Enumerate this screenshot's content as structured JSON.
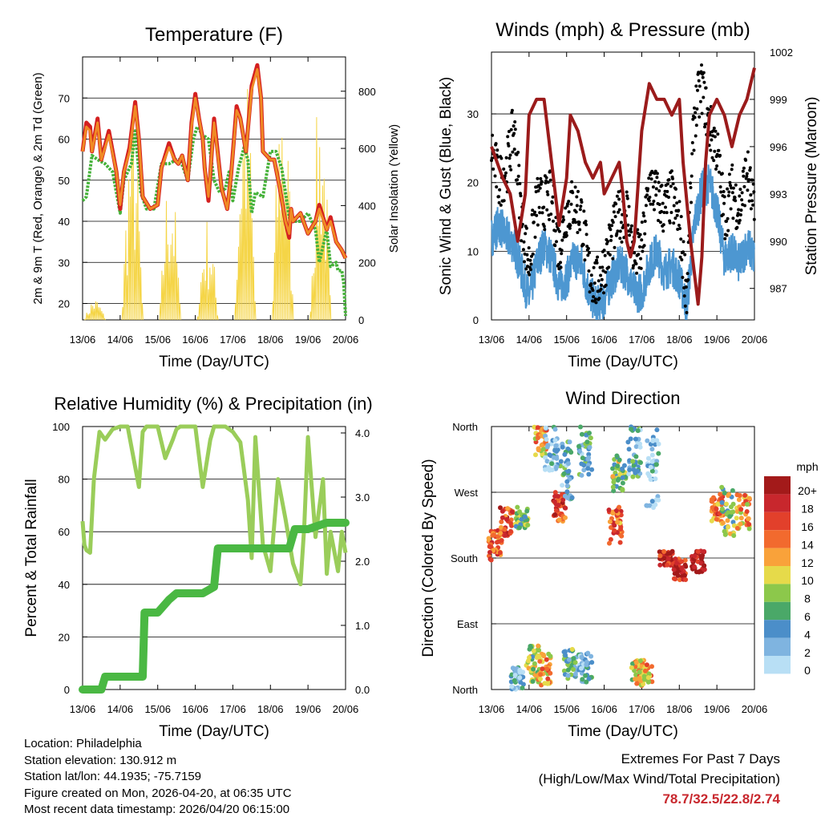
{
  "chart_data": [
    {
      "type": "line",
      "title": "Temperature (F)",
      "xlabel": "Time (Day/UTC)",
      "ylabel": "2m & 9m T (Red, Orange) & 2m Td (Green)",
      "y2label": "Solar Insolation (Yellow)",
      "x_ticks": [
        "13/06",
        "14/06",
        "15/06",
        "16/06",
        "17/06",
        "18/06",
        "19/06",
        "20/06"
      ],
      "ylim": [
        16,
        80
      ],
      "y_ticks": [
        20,
        30,
        40,
        50,
        60,
        70
      ],
      "y2lim": [
        0,
        920
      ],
      "y2_ticks": [
        0,
        200,
        400,
        600,
        800
      ],
      "series": [
        {
          "name": "2m T",
          "color": "#d42020",
          "x": [
            0,
            0.1,
            0.2,
            0.25,
            0.4,
            0.5,
            0.7,
            0.9,
            1.0,
            1.1,
            1.25,
            1.4,
            1.5,
            1.6,
            1.8,
            2.0,
            2.1,
            2.3,
            2.45,
            2.55,
            2.65,
            2.8,
            2.9,
            3.0,
            3.1,
            3.2,
            3.25,
            3.35,
            3.5,
            3.7,
            3.85,
            3.95,
            4.1,
            4.2,
            4.35,
            4.5,
            4.65,
            4.75,
            4.8,
            5.0,
            5.1,
            5.25,
            5.4,
            5.5,
            5.55,
            5.6,
            5.8,
            6.0,
            6.2,
            6.3,
            6.5,
            6.6,
            6.75,
            6.9,
            7.0
          ],
          "y": [
            57,
            64,
            63,
            57,
            65,
            55,
            62,
            52,
            43,
            52,
            58,
            69,
            60,
            46,
            43,
            44,
            53,
            59,
            55,
            54,
            56,
            50,
            64,
            71,
            65,
            60,
            53,
            45,
            65,
            48,
            43,
            51,
            68,
            65,
            57,
            73,
            78,
            70,
            57,
            55,
            55,
            48,
            40,
            36,
            43,
            40,
            42,
            37,
            40,
            44,
            38,
            41,
            35,
            33,
            31
          ]
        },
        {
          "name": "9m T",
          "color": "#f08a24",
          "x": [
            0,
            0.1,
            0.2,
            0.25,
            0.4,
            0.5,
            0.7,
            0.9,
            1.0,
            1.1,
            1.25,
            1.4,
            1.5,
            1.6,
            1.8,
            2.0,
            2.1,
            2.3,
            2.45,
            2.55,
            2.65,
            2.8,
            2.9,
            3.0,
            3.1,
            3.2,
            3.25,
            3.35,
            3.5,
            3.7,
            3.85,
            3.95,
            4.1,
            4.2,
            4.35,
            4.5,
            4.65,
            4.75,
            4.8,
            5.0,
            5.1,
            5.25,
            5.4,
            5.5,
            5.55,
            5.6,
            5.8,
            6.0,
            6.2,
            6.3,
            6.5,
            6.6,
            6.75,
            6.9,
            7.0
          ],
          "y": [
            57,
            63,
            62,
            57,
            64,
            55,
            61,
            52,
            44,
            52,
            57,
            68,
            60,
            46,
            43,
            44,
            53,
            58,
            55,
            54,
            56,
            50,
            63,
            70,
            65,
            60,
            53,
            46,
            64,
            48,
            43,
            51,
            67,
            65,
            57,
            72,
            77,
            70,
            57,
            55,
            55,
            48,
            40,
            37,
            43,
            40,
            42,
            37,
            40,
            43,
            38,
            40,
            35,
            33,
            31
          ]
        },
        {
          "name": "2m Td",
          "color": "#46b23a",
          "x": [
            0,
            0.1,
            0.25,
            0.4,
            0.6,
            0.8,
            1.0,
            1.1,
            1.3,
            1.4,
            1.55,
            1.7,
            1.9,
            2.1,
            2.3,
            2.5,
            2.6,
            2.8,
            2.95,
            3.05,
            3.2,
            3.35,
            3.5,
            3.65,
            3.8,
            3.9,
            4.0,
            4.15,
            4.3,
            4.4,
            4.5,
            4.6,
            4.8,
            5.0,
            5.15,
            5.3,
            5.5,
            5.6,
            5.8,
            6.0,
            6.2,
            6.3,
            6.5,
            6.6,
            6.75,
            6.8,
            6.9,
            6.95,
            7.0
          ],
          "y": [
            45,
            46,
            56,
            55,
            54,
            52,
            42,
            50,
            54,
            62,
            47,
            43,
            43,
            54,
            54,
            55,
            55,
            50,
            60,
            63,
            61,
            60,
            50,
            47,
            48,
            52,
            45,
            53,
            58,
            55,
            42,
            47,
            46,
            57,
            57,
            53,
            41,
            40,
            40,
            42,
            38,
            30,
            38,
            29,
            30,
            28,
            28,
            25,
            17
          ]
        },
        {
          "name": "Solar Insolation",
          "axis": "y2",
          "color": "#f5d547",
          "x": [
            0.3,
            1.3,
            2.3,
            3.3,
            4.3,
            5.3,
            6.3
          ],
          "y": [
            80,
            760,
            560,
            370,
            920,
            930,
            840
          ]
        }
      ]
    },
    {
      "type": "line",
      "title": "Winds (mph) & Pressure (mb)",
      "xlabel": "Time (Day/UTC)",
      "ylabel": "Sonic Wind & Gust (Blue, Black)",
      "y2label": "Station Pressure (Maroon)",
      "x_ticks": [
        "13/06",
        "14/06",
        "15/06",
        "16/06",
        "17/06",
        "18/06",
        "19/06",
        "20/06"
      ],
      "ylim": [
        0,
        39
      ],
      "y_ticks": [
        0,
        10,
        20,
        30
      ],
      "y2lim": [
        985,
        1002
      ],
      "y2_ticks": [
        987,
        990,
        993,
        996,
        999,
        1002
      ],
      "series": [
        {
          "name": "Pressure",
          "axis": "y2",
          "color": "#9b1b1b",
          "x": [
            0,
            0.3,
            0.5,
            0.7,
            0.9,
            1.0,
            1.2,
            1.4,
            1.6,
            1.8,
            2.0,
            2.1,
            2.3,
            2.5,
            2.7,
            2.9,
            3.0,
            3.2,
            3.4,
            3.5,
            3.6,
            3.7,
            3.8,
            4.0,
            4.2,
            4.4,
            4.6,
            4.8,
            5.0,
            5.1,
            5.3,
            5.5,
            5.6,
            5.7,
            5.8,
            6.0,
            6.2,
            6.4,
            6.6,
            6.8,
            7.0
          ],
          "y": [
            996,
            994,
            993,
            990,
            993,
            998,
            999,
            999,
            995,
            991,
            994,
            998,
            997,
            995,
            994,
            995,
            993,
            994,
            995,
            993,
            990,
            989,
            990,
            997,
            1000,
            999,
            999,
            998,
            999,
            995,
            990,
            986,
            989,
            995,
            998,
            999,
            998,
            996,
            998,
            999,
            1001
          ]
        },
        {
          "name": "Sonic Wind",
          "color": "#4d97d1",
          "x": [
            0,
            0.2,
            0.4,
            0.6,
            0.8,
            1.0,
            1.2,
            1.4,
            1.6,
            1.8,
            2.0,
            2.2,
            2.4,
            2.6,
            2.8,
            3.0,
            3.2,
            3.4,
            3.6,
            3.8,
            4.0,
            4.2,
            4.4,
            4.6,
            4.8,
            5.0,
            5.2,
            5.4,
            5.6,
            5.8,
            6.0,
            6.2,
            6.4,
            6.6,
            6.8,
            7.0
          ],
          "y": [
            12,
            14,
            12,
            11,
            7,
            3,
            8,
            11,
            9,
            5,
            6,
            9,
            8,
            4,
            2,
            3,
            6,
            8,
            7,
            4,
            4,
            8,
            10,
            7,
            8,
            6,
            2,
            14,
            19,
            20,
            16,
            9,
            10,
            8,
            11,
            9
          ]
        },
        {
          "name": "Gust",
          "color": "#000000",
          "x": [
            0,
            0.2,
            0.4,
            0.6,
            0.8,
            1.0,
            1.2,
            1.4,
            1.6,
            1.8,
            2.0,
            2.2,
            2.4,
            2.6,
            2.8,
            3.0,
            3.2,
            3.4,
            3.6,
            3.8,
            4.0,
            4.2,
            4.4,
            4.6,
            4.8,
            5.0,
            5.2,
            5.4,
            5.6,
            5.8,
            6.0,
            6.2,
            6.4,
            6.6,
            6.8,
            7.0
          ],
          "y": [
            25,
            20,
            22,
            28,
            15,
            8,
            17,
            17,
            18,
            10,
            16,
            17,
            15,
            7,
            5,
            8,
            12,
            15,
            16,
            9,
            10,
            20,
            18,
            16,
            18,
            14,
            4,
            30,
            34,
            28,
            25,
            15,
            19,
            16,
            22,
            15
          ]
        }
      ]
    },
    {
      "type": "line",
      "title": "Relative Humidity (%) & Precipitation (in)",
      "xlabel": "Time (Day/UTC)",
      "ylabel": "Percent & Total Rainfall",
      "x_ticks": [
        "13/06",
        "14/06",
        "15/06",
        "16/06",
        "17/06",
        "18/06",
        "19/06",
        "20/06"
      ],
      "ylim": [
        0,
        100
      ],
      "y_ticks": [
        0,
        20,
        40,
        60,
        80,
        100
      ],
      "y2lim": [
        0,
        4.1
      ],
      "y2_ticks": [
        "0.0",
        "1.0",
        "2.0",
        "3.0",
        "4.0"
      ],
      "series": [
        {
          "name": "Relative Humidity",
          "color": "#9acd5a",
          "x": [
            0,
            0.05,
            0.1,
            0.2,
            0.3,
            0.45,
            0.6,
            0.8,
            1.0,
            1.2,
            1.5,
            1.6,
            1.7,
            1.8,
            2.0,
            2.2,
            2.4,
            2.5,
            2.6,
            2.8,
            3.0,
            3.2,
            3.4,
            3.5,
            3.6,
            3.8,
            4.0,
            4.2,
            4.4,
            4.5,
            4.6,
            4.8,
            5.0,
            5.2,
            5.4,
            5.6,
            5.8,
            5.9,
            6.0,
            6.2,
            6.4,
            6.5,
            6.6,
            6.8,
            6.9,
            7.0
          ],
          "y": [
            64,
            55,
            53,
            52,
            80,
            98,
            95,
            99,
            100,
            100,
            77,
            98,
            100,
            100,
            100,
            88,
            95,
            99,
            100,
            100,
            100,
            77,
            95,
            100,
            100,
            100,
            98,
            94,
            72,
            50,
            96,
            55,
            45,
            80,
            65,
            48,
            40,
            62,
            96,
            58,
            80,
            44,
            60,
            45,
            60,
            52
          ]
        },
        {
          "name": "Total Precipitation",
          "axis": "y2",
          "color": "#4ab843",
          "x": [
            0,
            0.5,
            0.6,
            0.7,
            1.4,
            1.6,
            1.65,
            1.7,
            2.0,
            2.3,
            2.5,
            2.8,
            3.2,
            3.5,
            3.55,
            3.6,
            3.9,
            4.2,
            4.8,
            5.0,
            5.5,
            5.65,
            5.7,
            6.0,
            6.5,
            7.0
          ],
          "y": [
            0,
            0,
            0.2,
            0.2,
            0.2,
            0.2,
            1.2,
            1.2,
            1.2,
            1.4,
            1.5,
            1.5,
            1.5,
            1.6,
            1.9,
            2.2,
            2.2,
            2.2,
            2.2,
            2.2,
            2.2,
            2.5,
            2.5,
            2.5,
            2.6,
            2.6
          ]
        }
      ]
    },
    {
      "type": "scatter",
      "title": "Wind Direction",
      "xlabel": "Time (Day/UTC)",
      "ylabel": "Direction (Colored By Speed)",
      "x_ticks": [
        "13/06",
        "14/06",
        "15/06",
        "16/06",
        "17/06",
        "18/06",
        "19/06",
        "20/06"
      ],
      "y_ticks": [
        "North",
        "East",
        "South",
        "West",
        "North"
      ],
      "y_values": [
        0,
        90,
        180,
        270,
        360
      ],
      "colorbar_title": "mph",
      "colorbar_labels": [
        "20+",
        "18",
        "16",
        "14",
        "12",
        "10",
        "8",
        "6",
        "4",
        "2",
        "0"
      ],
      "colorbar_colors": [
        "#a31a1a",
        "#c8272d",
        "#e2402b",
        "#f26a2e",
        "#f9a23a",
        "#e6da4a",
        "#8cc84b",
        "#4aa868",
        "#4b8ec9",
        "#7fb4e0",
        "#b8dff5"
      ],
      "clusters": [
        {
          "x": 0.1,
          "dir_start": 175,
          "dir_end": 220,
          "speed": 14
        },
        {
          "x": 0.4,
          "dir_start": 210,
          "dir_end": 250,
          "speed": 16
        },
        {
          "x": 0.8,
          "dir_start": 220,
          "dir_end": 250,
          "speed": 8
        },
        {
          "x": 1.8,
          "dir_start": 230,
          "dir_end": 270,
          "speed": 16
        },
        {
          "x": 3.3,
          "dir_start": 200,
          "dir_end": 250,
          "speed": 14
        },
        {
          "x": 3.4,
          "dir_start": 270,
          "dir_end": 320,
          "speed": 8
        },
        {
          "x": 4.65,
          "dir_start": 170,
          "dir_end": 190,
          "speed": 18
        },
        {
          "x": 5.0,
          "dir_start": 150,
          "dir_end": 180,
          "speed": 18
        },
        {
          "x": 5.5,
          "dir_start": 160,
          "dir_end": 190,
          "speed": 20
        },
        {
          "x": 6.0,
          "dir_start": 230,
          "dir_end": 270,
          "speed": 14
        },
        {
          "x": 6.3,
          "dir_start": 210,
          "dir_end": 280,
          "speed": 8
        },
        {
          "x": 6.7,
          "dir_start": 220,
          "dir_end": 270,
          "speed": 12
        },
        {
          "x": 0.7,
          "dir_start": 0,
          "dir_end": 30,
          "speed": 2
        },
        {
          "x": 1.1,
          "dir_start": 10,
          "dir_end": 60,
          "speed": 8
        },
        {
          "x": 1.4,
          "dir_start": 5,
          "dir_end": 50,
          "speed": 12
        },
        {
          "x": 2.1,
          "dir_start": 15,
          "dir_end": 55,
          "speed": 6
        },
        {
          "x": 2.5,
          "dir_start": 10,
          "dir_end": 50,
          "speed": 4
        },
        {
          "x": 3.9,
          "dir_start": 5,
          "dir_end": 40,
          "speed": 10
        },
        {
          "x": 4.1,
          "dir_start": 10,
          "dir_end": 35,
          "speed": 12
        },
        {
          "x": 1.3,
          "dir_start": 320,
          "dir_end": 360,
          "speed": 12
        },
        {
          "x": 2.0,
          "dir_start": 260,
          "dir_end": 340,
          "speed": 4
        },
        {
          "x": 2.5,
          "dir_start": 290,
          "dir_end": 360,
          "speed": 4
        },
        {
          "x": 3.8,
          "dir_start": 290,
          "dir_end": 360,
          "speed": 4
        },
        {
          "x": 1.6,
          "dir_start": 300,
          "dir_end": 360,
          "speed": 2
        },
        {
          "x": 4.3,
          "dir_start": 240,
          "dir_end": 360,
          "speed": 2
        }
      ]
    }
  ],
  "info": {
    "location": "Location: Philadelphia",
    "elevation": "Station elevation: 130.912 m",
    "latlon": "Station lat/lon: 44.1935; -75.7159",
    "created": "Figure created on Mon, 2026-04-20, at 06:35 UTC",
    "recent": "Most recent data timestamp: 2026/04/20 06:15:00"
  },
  "extremes": {
    "title": "Extremes For Past 7 Days",
    "subtitle": "(High/Low/Max Wind/Total Precipitation)",
    "values": "78.7/32.5/22.8/2.74"
  }
}
